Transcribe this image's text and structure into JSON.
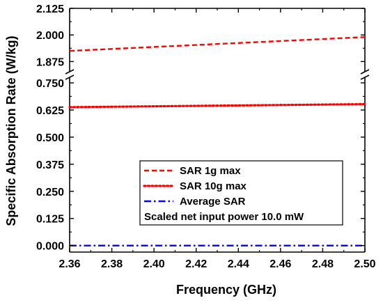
{
  "chart_data": {
    "type": "line",
    "xlabel": "Frequency (GHz)",
    "ylabel": "Specific Absorption Rate (W/kg)",
    "xlim": [
      2.36,
      2.5
    ],
    "x_ticks": [
      "2.36",
      "2.38",
      "2.40",
      "2.42",
      "2.44",
      "2.46",
      "2.48",
      "2.50"
    ],
    "y_axis_break": true,
    "y_upper_segment": {
      "ylim": [
        1.85,
        2.125
      ],
      "ticks": [
        "1.875",
        "2.000",
        "2.125"
      ]
    },
    "y_lower_segment": {
      "ylim": [
        -0.03,
        0.75
      ],
      "ticks": [
        "0.000",
        "0.125",
        "0.250",
        "0.375",
        "0.500",
        "0.625",
        "0.750"
      ]
    },
    "series": [
      {
        "name": "SAR 1g max",
        "color": "#ff0000",
        "style": "dashed",
        "x": [
          2.36,
          2.5
        ],
        "y": [
          1.925,
          1.99
        ]
      },
      {
        "name": "SAR 10g max",
        "color": "#ff0000",
        "style": "dotted",
        "x": [
          2.36,
          2.5
        ],
        "y": [
          0.638,
          0.652
        ]
      },
      {
        "name": "Average SAR",
        "color": "#0000ff",
        "style": "dash-dot",
        "x": [
          2.36,
          2.5
        ],
        "y": [
          0.0,
          0.0
        ]
      }
    ],
    "legend_position": "lower-center",
    "annotation": "Scaled net input power 10.0 mW",
    "grid": false
  }
}
